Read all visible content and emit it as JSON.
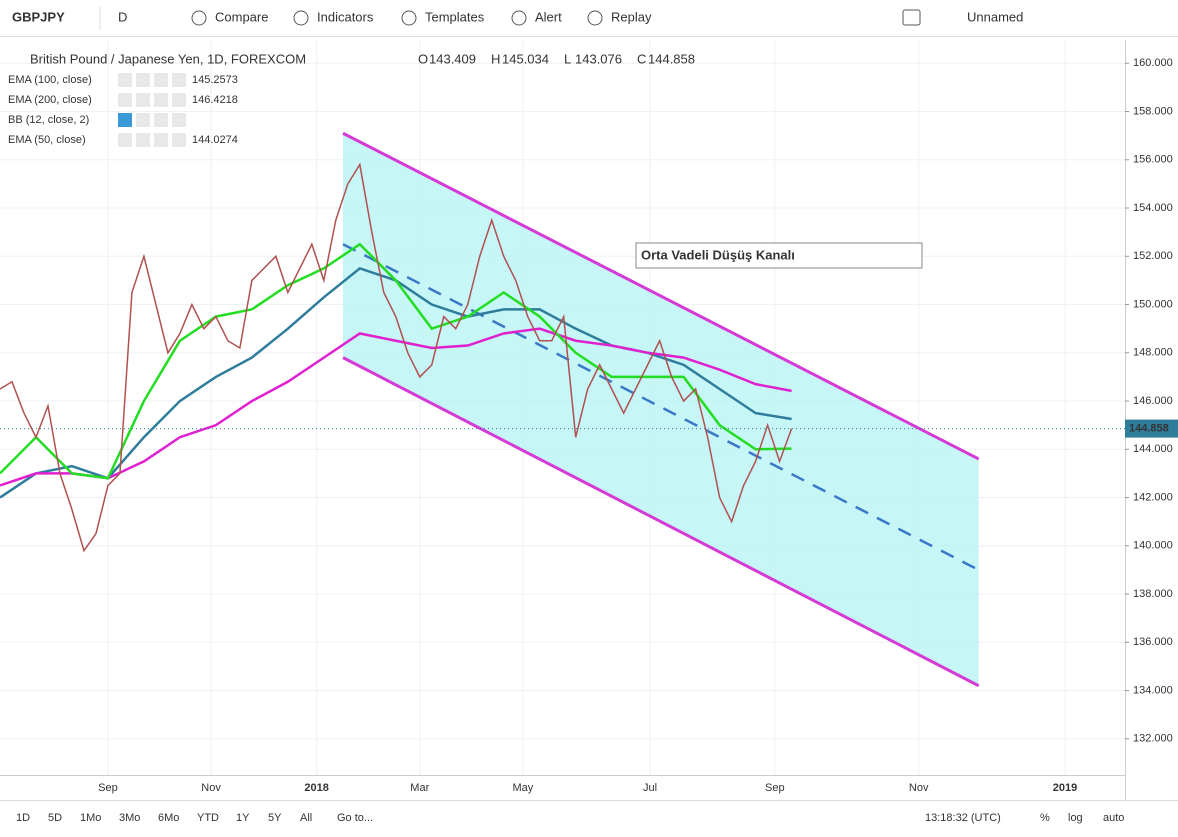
{
  "toolbar": {
    "symbol": "GBPJPY",
    "interval": "D",
    "buttons": [
      "Compare",
      "Indicators",
      "Templates",
      "Alert",
      "Replay"
    ],
    "layout_name": "Unnamed"
  },
  "chart_data": {
    "type": "line",
    "title": "British Pound / Japanese Yen, 1D, FOREXCOM",
    "ohlc": [
      {
        "label": "O",
        "value": 143.409
      },
      {
        "label": "H",
        "value": 145.034
      },
      {
        "label": "L",
        "value": 143.076
      },
      {
        "label": "C",
        "value": 144.858
      }
    ],
    "x": [
      0,
      5,
      10,
      15,
      20,
      25,
      30,
      35,
      40,
      45,
      50,
      55,
      60,
      65,
      70,
      75,
      80,
      85,
      90,
      95,
      100,
      105,
      110,
      115,
      120,
      125,
      130,
      135,
      140,
      145,
      150,
      155,
      160,
      165,
      170,
      175,
      180,
      185,
      190,
      195,
      200,
      205,
      210,
      215,
      220,
      225,
      230,
      235,
      240,
      245,
      250,
      255,
      260,
      265,
      270,
      275,
      280,
      285,
      290,
      295,
      300,
      305,
      310,
      315,
      320,
      325,
      330
    ],
    "values": [
      146.5,
      146.8,
      145.5,
      144.5,
      145.8,
      143,
      141.5,
      139.8,
      140.5,
      142.5,
      143,
      150.5,
      152,
      150,
      148,
      148.8,
      150,
      149,
      149.5,
      148.5,
      148.2,
      151,
      151.5,
      152,
      150.5,
      151.5,
      152.5,
      151,
      153.5,
      155,
      155.8,
      153,
      150.5,
      149.5,
      148,
      147,
      147.5,
      149.5,
      149,
      150,
      152,
      153.5,
      152,
      151,
      149.5,
      148.5,
      148.5,
      149.5,
      144.5,
      146.5,
      147.5,
      146.5,
      145.5,
      146.5,
      147.5,
      148.5,
      147,
      146,
      146.5,
      144.5,
      142,
      141,
      142.5,
      143.5,
      145,
      143.5,
      144.858
    ],
    "color": "#b05050",
    "indicators": [
      {
        "name": "EMA (100, close)",
        "color": "#2e7d9a",
        "value": 145.2573,
        "x": [
          0,
          15,
          30,
          45,
          60,
          75,
          90,
          105,
          120,
          135,
          150,
          165,
          180,
          195,
          210,
          225,
          240,
          255,
          270,
          285,
          300,
          315,
          330
        ],
        "values": [
          142,
          143,
          143.3,
          142.8,
          144.5,
          146,
          147,
          147.8,
          149,
          150.3,
          151.5,
          151,
          150,
          149.5,
          149.8,
          149.8,
          149,
          148.3,
          148,
          147.5,
          146.5,
          145.5,
          145.2573
        ]
      },
      {
        "name": "EMA (200, close)",
        "color": "#e020d0",
        "value": 146.4218,
        "x": [
          0,
          15,
          30,
          45,
          60,
          75,
          90,
          105,
          120,
          135,
          150,
          165,
          180,
          195,
          210,
          225,
          240,
          255,
          270,
          285,
          300,
          315,
          330
        ],
        "values": [
          142.5,
          143,
          143,
          142.8,
          143.5,
          144.5,
          145,
          146,
          146.8,
          147.8,
          148.8,
          148.5,
          148.2,
          148.3,
          148.8,
          149,
          148.5,
          148.3,
          148,
          147.8,
          147.3,
          146.7,
          146.4218
        ]
      },
      {
        "name": "BB (12, close, 2)",
        "color": "#aaaaaa"
      },
      {
        "name": "EMA (50, close)",
        "color": "#22dd22",
        "value": 144.0274,
        "x": [
          0,
          15,
          30,
          45,
          60,
          75,
          90,
          105,
          120,
          135,
          150,
          165,
          180,
          195,
          210,
          225,
          240,
          255,
          270,
          285,
          300,
          315,
          330
        ],
        "values": [
          143,
          144.5,
          143,
          142.8,
          146,
          148.5,
          149.5,
          149.8,
          150.8,
          151.5,
          152.5,
          151,
          149,
          149.5,
          150.5,
          149.5,
          148,
          147,
          147,
          147,
          145,
          144,
          144.0274
        ]
      }
    ],
    "channel": {
      "x": [
        143,
        408
      ],
      "upper": [
        157.1,
        143.6
      ],
      "middle": [
        152.5,
        139
      ],
      "lower": [
        147.8,
        134.2
      ],
      "fill": "#b8f4f4",
      "line_color": "#d63ad6",
      "mid_color": "#3a78c8"
    },
    "annotation": "Orta Vadeli Düşüş Kanalı",
    "xlim": [
      0,
      469
    ],
    "xticks": [
      {
        "value": 45,
        "label": "Sep"
      },
      {
        "value": 88,
        "label": "Nov"
      },
      {
        "value": 132,
        "label": "2018"
      },
      {
        "value": 175,
        "label": "Mar"
      },
      {
        "value": 218,
        "label": "May"
      },
      {
        "value": 271,
        "label": "Jul"
      },
      {
        "value": 323,
        "label": "Sep"
      },
      {
        "value": 383,
        "label": "Nov"
      },
      {
        "value": 444,
        "label": "2019"
      }
    ],
    "ylim": [
      160.965,
      130.5
    ],
    "yticks": [
      {
        "value": 160,
        "label": "160.000"
      },
      {
        "value": 158,
        "label": "158.000"
      },
      {
        "value": 156,
        "label": "156.000"
      },
      {
        "value": 154,
        "label": "154.000"
      },
      {
        "value": 152,
        "label": "152.000"
      },
      {
        "value": 150,
        "label": "150.000"
      },
      {
        "value": 148,
        "label": "148.000"
      },
      {
        "value": 146,
        "label": "146.000"
      },
      {
        "value": 144,
        "label": "144.000"
      },
      {
        "value": 142,
        "label": "142.000"
      },
      {
        "value": 140,
        "label": "140.000"
      },
      {
        "value": 138,
        "label": "138.000"
      },
      {
        "value": 136,
        "label": "136.000"
      },
      {
        "value": 134,
        "label": "134.000"
      },
      {
        "value": 132,
        "label": "132.000"
      }
    ],
    "grid": true
  },
  "bottom_bar": {
    "ranges": [
      "1D",
      "5D",
      "1Mo",
      "3Mo",
      "6Mo",
      "YTD",
      "1Y",
      "5Y",
      "All"
    ],
    "goto": "Go to...",
    "time": "13:18:32 (UTC)",
    "scale_options": [
      "%",
      "log",
      "auto"
    ]
  }
}
